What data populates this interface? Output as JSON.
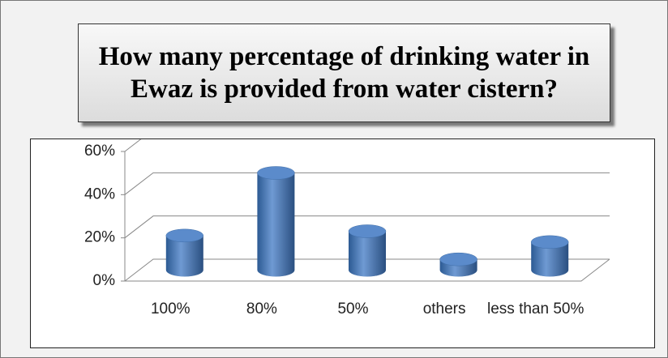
{
  "chart_data": {
    "type": "bar",
    "title": "How many percentage of drinking water in Ewaz is provided from water cistern?",
    "categories": [
      "100%",
      "80%",
      "50%",
      "others",
      "less than 50%"
    ],
    "values": [
      16,
      45,
      18,
      5,
      13
    ],
    "color": "#4f81bd",
    "ylim": [
      0,
      60
    ],
    "yticks": [
      {
        "value": 0,
        "label": "0%"
      },
      {
        "value": 20,
        "label": "20%"
      },
      {
        "value": 40,
        "label": "40%"
      },
      {
        "value": 60,
        "label": "60%"
      }
    ],
    "grid": true
  }
}
